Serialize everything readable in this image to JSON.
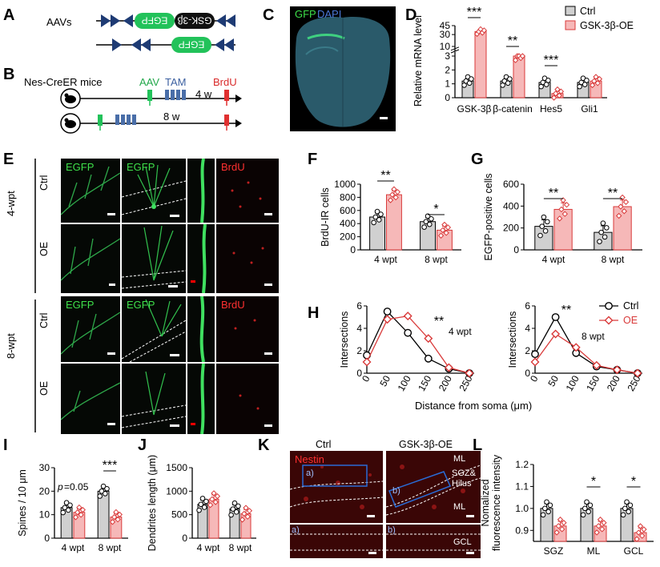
{
  "panels": [
    "A",
    "B",
    "C",
    "D",
    "E",
    "F",
    "G",
    "H",
    "I",
    "J",
    "K",
    "L"
  ],
  "a": {
    "label": "AAVs",
    "egfp": "EGFP",
    "gsk": "GSK-3β"
  },
  "b": {
    "mouse_line": "Nes-CreER mice",
    "aav": "AAV",
    "tam": "TAM",
    "brdu": "BrdU",
    "t1": "4 w",
    "t2": "8 w"
  },
  "c": {
    "gfp": "GFP",
    "dapi": "DAPI"
  },
  "colors": {
    "ctrl_fill": "#d0d0d0",
    "oe": "#d93a3a",
    "oe_fill": "#f6b8b8",
    "egfp_green": "#22c25a",
    "tam_blue": "#4a6ea8",
    "brdu_red": "#e03030"
  },
  "d": {
    "ylabel": "Relative mRNA level",
    "legend": [
      "Ctrl",
      "GSK-3β-OE"
    ],
    "categories": [
      "GSK-3β",
      "β-catenin",
      "Hes5",
      "Gli1"
    ],
    "ticks_low": [
      "0",
      "1",
      "2",
      "3"
    ],
    "ticks_high": [
      "10",
      "30",
      "45"
    ],
    "sig": [
      "***",
      "**",
      "***"
    ]
  },
  "e": {
    "rows": [
      "Ctrl",
      "OE",
      "Ctrl",
      "OE"
    ],
    "groups": [
      "4-wpt",
      "8-wpt"
    ],
    "egfp": "EGFP",
    "brdu": "BrdU"
  },
  "f": {
    "ylabel": "BrdU-IR cells",
    "ticks": [
      "0",
      "200",
      "400",
      "600",
      "800",
      "1000"
    ],
    "xticks": [
      "4 wpt",
      "8 wpt"
    ],
    "sig": [
      "**",
      "*"
    ]
  },
  "g": {
    "ylabel": "EGFP-positive cells",
    "ticks": [
      "0",
      "200",
      "400",
      "600"
    ],
    "xticks": [
      "4 wpt",
      "8 wpt"
    ],
    "sig": [
      "**",
      "**"
    ]
  },
  "h": {
    "ylabel": "Intersections",
    "xlabel": "Distance from soma (μm)",
    "yticks": [
      "0",
      "2",
      "4",
      "6"
    ],
    "xticks": [
      "0",
      "50",
      "100",
      "150",
      "200",
      "250"
    ],
    "ann1": "4 wpt",
    "ann2": "8 wpt",
    "sig": "**",
    "legend": [
      "Ctrl",
      "OE"
    ]
  },
  "i": {
    "ylabel": "Spines / 10 μm",
    "ticks": [
      "0",
      "10",
      "20",
      "30"
    ],
    "xticks": [
      "4 wpt",
      "8 wpt"
    ],
    "p_p": "p",
    "p_val": "=0.05",
    "sig": "***"
  },
  "j": {
    "ylabel": "Dendrites length (μm)",
    "ticks": [
      "0",
      "500",
      "1000",
      "1500"
    ],
    "xticks": [
      "4 wpt",
      "8 wpt"
    ]
  },
  "k": {
    "ctrl": "Ctrl",
    "oe": "GSK-3β-OE",
    "nestin": "Nestin",
    "a": "a)",
    "b": "b)",
    "a2": "a)",
    "b2": "b)",
    "ml": "ML",
    "sgz1": "SGZ&",
    "sgz2": "Hilus",
    "ml2": "ML",
    "gcl": "GCL"
  },
  "l": {
    "ylabel1": "Nomalized",
    "ylabel2": "fluorescence intensity",
    "ticks": [
      "0.9",
      "1.0",
      "1.1",
      "1.2"
    ],
    "xticks": [
      "SGZ",
      "ML",
      "GCL"
    ],
    "sig": [
      "*",
      "*"
    ]
  },
  "chart_data": [
    {
      "panel": "D",
      "type": "bar",
      "title": "",
      "ylabel": "Relative mRNA level",
      "categories": [
        "GSK-3β",
        "β-catenin",
        "Hes5",
        "Gli1"
      ],
      "series": [
        {
          "name": "Ctrl",
          "values": [
            1.2,
            1.2,
            1.1,
            1.1
          ]
        },
        {
          "name": "GSK-3β-OE",
          "values": [
            35,
            3.0,
            0.3,
            1.2
          ]
        }
      ],
      "ylim": [
        0,
        45
      ]
    },
    {
      "panel": "F",
      "type": "bar",
      "ylabel": "BrdU-IR cells",
      "categories": [
        "4 wpt",
        "8 wpt"
      ],
      "series": [
        {
          "name": "Ctrl",
          "values": [
            500,
            430
          ]
        },
        {
          "name": "OE",
          "values": [
            840,
            300
          ]
        }
      ],
      "ylim": [
        0,
        1000
      ]
    },
    {
      "panel": "G",
      "type": "bar",
      "ylabel": "EGFP-positive cells",
      "categories": [
        "4 wpt",
        "8 wpt"
      ],
      "series": [
        {
          "name": "Ctrl",
          "values": [
            215,
            160
          ]
        },
        {
          "name": "OE",
          "values": [
            370,
            395
          ]
        }
      ],
      "ylim": [
        0,
        600
      ]
    },
    {
      "panel": "H-4wpt",
      "type": "line",
      "ylabel": "Intersections",
      "xlabel": "Distance from soma (μm)",
      "x": [
        0,
        50,
        100,
        150,
        200,
        250
      ],
      "series": [
        {
          "name": "Ctrl",
          "values": [
            1.6,
            5.5,
            3.6,
            1.3,
            0.4,
            0.0
          ]
        },
        {
          "name": "OE",
          "values": [
            1.0,
            4.8,
            5.1,
            3.1,
            0.5,
            0.0
          ]
        }
      ],
      "ylim": [
        0,
        6
      ]
    },
    {
      "panel": "H-8wpt",
      "type": "line",
      "ylabel": "Intersections",
      "x": [
        0,
        50,
        100,
        150,
        200,
        250
      ],
      "series": [
        {
          "name": "Ctrl",
          "values": [
            1.7,
            5.0,
            1.8,
            0.6,
            0.3,
            0.0
          ]
        },
        {
          "name": "OE",
          "values": [
            1.0,
            3.5,
            2.3,
            0.7,
            0.3,
            0.0
          ]
        }
      ],
      "ylim": [
        0,
        6
      ]
    },
    {
      "panel": "I",
      "type": "bar",
      "ylabel": "Spines / 10 μm",
      "categories": [
        "4 wpt",
        "8 wpt"
      ],
      "series": [
        {
          "name": "Ctrl",
          "values": [
            13,
            20
          ]
        },
        {
          "name": "OE",
          "values": [
            11,
            9
          ]
        }
      ],
      "ylim": [
        0,
        30
      ]
    },
    {
      "panel": "J",
      "type": "bar",
      "ylabel": "Dendrites length (μm)",
      "categories": [
        "4 wpt",
        "8 wpt"
      ],
      "series": [
        {
          "name": "Ctrl",
          "values": [
            720,
            620
          ]
        },
        {
          "name": "OE",
          "values": [
            830,
            520
          ]
        }
      ],
      "ylim": [
        0,
        1500
      ]
    },
    {
      "panel": "L",
      "type": "bar",
      "ylabel": "Nomalized fluorescence intensity",
      "categories": [
        "SGZ",
        "ML",
        "GCL"
      ],
      "series": [
        {
          "name": "Ctrl",
          "values": [
            1.0,
            1.0,
            1.0
          ]
        },
        {
          "name": "OE",
          "values": [
            0.92,
            0.92,
            0.89
          ]
        }
      ],
      "ylim": [
        0.85,
        1.2
      ]
    }
  ]
}
